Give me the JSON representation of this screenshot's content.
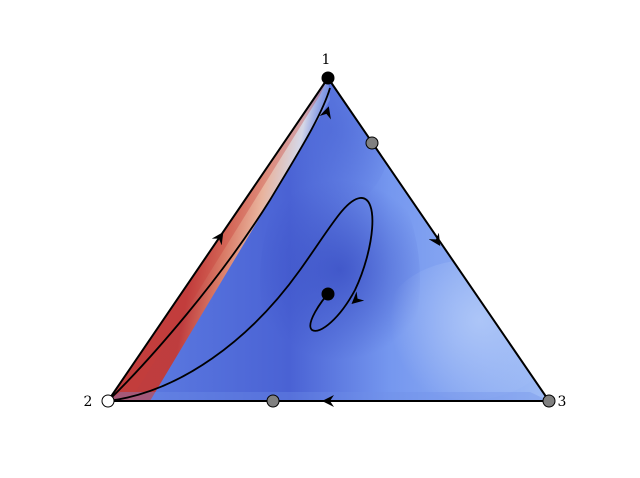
{
  "vertices": [
    {
      "label": "1",
      "point": "stable",
      "color": "#000000"
    },
    {
      "label": "2",
      "point": "unstable",
      "color": "#ffffff"
    },
    {
      "label": "3",
      "point": "saddle",
      "color": "#808080"
    }
  ],
  "edge_points": [
    {
      "edge": "1-3",
      "point": "saddle",
      "color": "#808080"
    },
    {
      "edge": "2-3",
      "point": "saddle",
      "color": "#808080"
    }
  ],
  "interior_point": {
    "point": "stable",
    "color": "#000000"
  },
  "colormap": {
    "name": "coolwarm",
    "low": "#3b4cc0",
    "mid": "#dddddd",
    "high": "#b40426"
  }
}
